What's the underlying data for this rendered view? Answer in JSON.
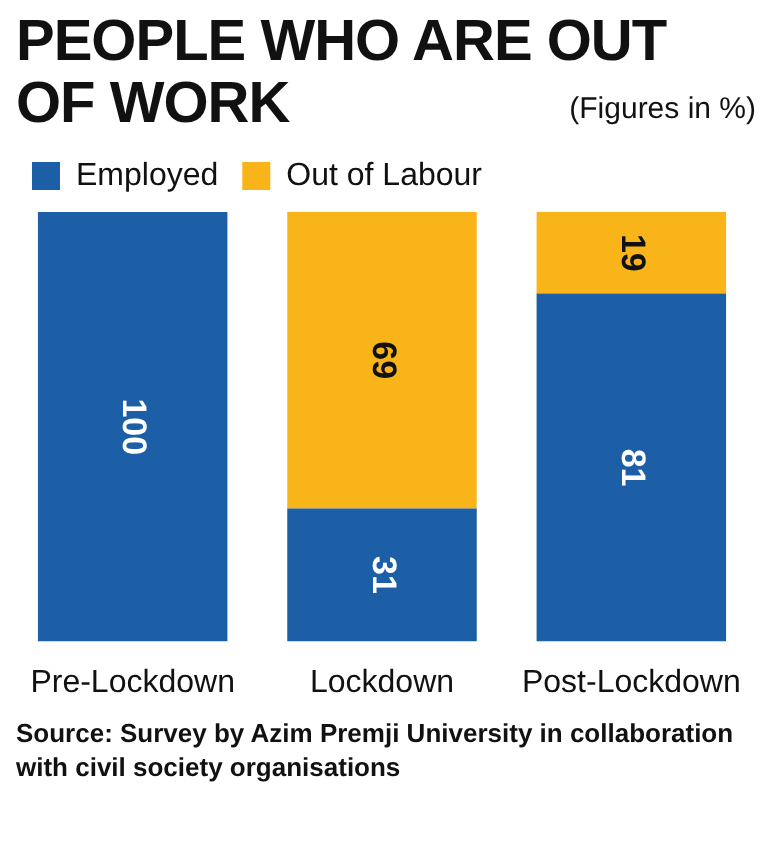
{
  "chart_data": {
    "type": "bar",
    "title": "PEOPLE WHO ARE OUT OF WORK",
    "subtitle": "(Figures in %)",
    "categories": [
      "Pre-Lockdown",
      "Lockdown",
      "Post-Lockdown"
    ],
    "series": [
      {
        "name": "Employed",
        "color": "#1d5fa6",
        "values": [
          100,
          31,
          81
        ]
      },
      {
        "name": "Out of Labour",
        "color": "#f8b418",
        "values": [
          null,
          69,
          19
        ]
      }
    ],
    "stacked": true,
    "ylim": [
      0,
      100
    ],
    "tick_labels": "x",
    "data_labels": true,
    "grid": false,
    "legend": "top left",
    "annotations": [
      "Source: Survey by Azim Premji University in collaboration with civil society organisations"
    ]
  }
}
